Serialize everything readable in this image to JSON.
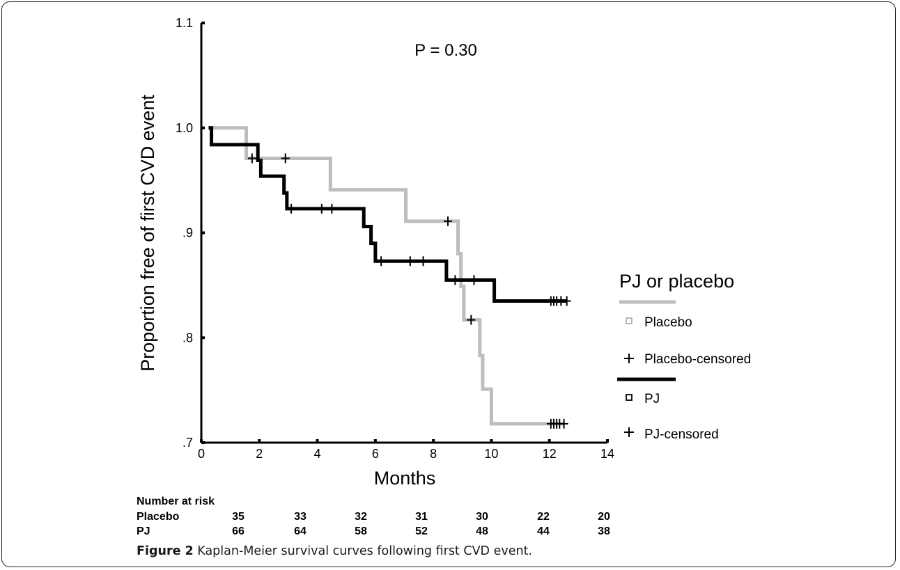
{
  "chart_data": {
    "type": "line",
    "subtype": "kaplan-meier step",
    "xlabel": "Months",
    "ylabel": "Proportion free of first CVD event",
    "xlim": [
      0,
      14
    ],
    "ylim": [
      0.7,
      1.1
    ],
    "x_ticks": [
      0,
      2,
      4,
      6,
      8,
      10,
      12,
      14
    ],
    "y_ticks": [
      {
        "value": 0.7,
        "label": ".7"
      },
      {
        "value": 0.8,
        "label": ".8"
      },
      {
        "value": 0.9,
        "label": ".9"
      },
      {
        "value": 1.0,
        "label": "1.0"
      },
      {
        "value": 1.1,
        "label": "1.1"
      }
    ],
    "annotation": "P = 0.30",
    "grid": false,
    "legend": {
      "title": "PJ or placebo",
      "position": "right",
      "entries": [
        "Placebo",
        "Placebo-censored",
        "PJ",
        "PJ-censored"
      ]
    },
    "series": [
      {
        "name": "Placebo",
        "color": "#bdbdbd",
        "steps": [
          [
            0.25,
            1.0
          ],
          [
            1.55,
            0.971
          ],
          [
            4.45,
            0.941
          ],
          [
            7.05,
            0.911
          ],
          [
            8.85,
            0.88
          ],
          [
            8.95,
            0.849
          ],
          [
            9.05,
            0.817
          ],
          [
            9.6,
            0.783
          ],
          [
            9.7,
            0.751
          ],
          [
            10.0,
            0.718
          ],
          [
            12.5,
            0.718
          ]
        ],
        "censored": [
          1.75,
          2.9,
          8.5,
          9.3,
          12.05,
          12.15,
          12.25,
          12.35,
          12.5
        ]
      },
      {
        "name": "PJ",
        "color": "#000000",
        "steps": [
          [
            0.25,
            1.0
          ],
          [
            0.35,
            0.984
          ],
          [
            1.95,
            0.969
          ],
          [
            2.05,
            0.954
          ],
          [
            2.85,
            0.938
          ],
          [
            2.95,
            0.923
          ],
          [
            5.6,
            0.906
          ],
          [
            5.85,
            0.89
          ],
          [
            6.0,
            0.873
          ],
          [
            8.45,
            0.855
          ],
          [
            10.1,
            0.835
          ],
          [
            12.6,
            0.835
          ]
        ],
        "censored": [
          3.1,
          4.15,
          4.5,
          6.2,
          7.2,
          7.65,
          8.75,
          9.4,
          12.05,
          12.15,
          12.25,
          12.4,
          12.6
        ]
      }
    ]
  },
  "risk_table": {
    "title": "Number at risk",
    "rows": [
      {
        "label": "Placebo",
        "values": [
          "35",
          "33",
          "32",
          "31",
          "30",
          "22",
          "20"
        ]
      },
      {
        "label": "PJ",
        "values": [
          "66",
          "64",
          "58",
          "52",
          "48",
          "44",
          "38"
        ]
      }
    ]
  },
  "caption": {
    "label": "Figure 2",
    "text": " Kaplan-Meier survival curves following first CVD event."
  }
}
